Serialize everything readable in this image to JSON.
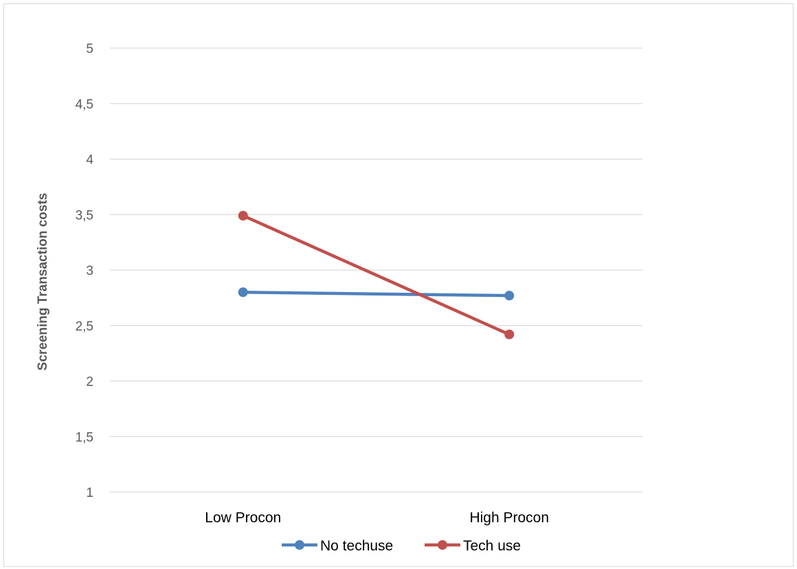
{
  "chart_data": {
    "type": "line",
    "title": "",
    "xlabel": "",
    "ylabel": "Screening Transaction costs",
    "categories": [
      "Low Procon",
      "High Procon"
    ],
    "series": [
      {
        "name": "No techuse",
        "values": [
          2.8,
          2.77
        ],
        "color": "#4f81bd"
      },
      {
        "name": "Tech use",
        "values": [
          3.49,
          2.42
        ],
        "color": "#c0504d"
      }
    ],
    "ylim": [
      1,
      5
    ],
    "yticks": [
      "1",
      "1,5",
      "2",
      "2,5",
      "3",
      "3,5",
      "4",
      "4,5",
      "5"
    ],
    "grid": true,
    "legend_position": "bottom"
  }
}
